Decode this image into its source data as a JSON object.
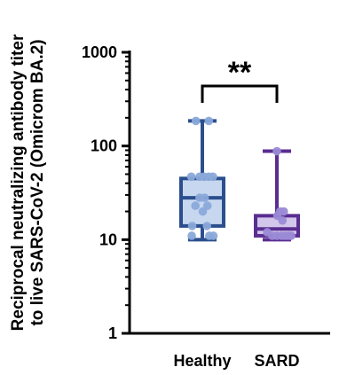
{
  "chart_data": {
    "type": "box",
    "ylabel_lines": [
      "Reciprocal neutralizing antibody titer",
      "to live SARS-CoV-2 (Omicrom BA.2)"
    ],
    "y_scale": "log",
    "ylim": [
      1,
      1000
    ],
    "yticks": [
      {
        "value": 1,
        "label": "1"
      },
      {
        "value": 10,
        "label": "10"
      },
      {
        "value": 100,
        "label": "100"
      },
      {
        "value": 1000,
        "label": "1000"
      }
    ],
    "categories": [
      "Healthy",
      "SARD"
    ],
    "groups": [
      {
        "label": "Healthy",
        "box_color": "#2b4f8e",
        "fill_color": "#c7d7ef",
        "point_color": "#8aa9d9",
        "min": 10,
        "q1": 14,
        "median": 28,
        "q3": 45,
        "max": 185,
        "points": [
          {
            "value": 185,
            "jitter": -0.28
          },
          {
            "value": 185,
            "jitter": 0.28
          },
          {
            "value": 47,
            "jitter": -0.48
          },
          {
            "value": 47,
            "jitter": -0.12
          },
          {
            "value": 47,
            "jitter": 0.08
          },
          {
            "value": 47,
            "jitter": 0.28
          },
          {
            "value": 47,
            "jitter": 0.46
          },
          {
            "value": 28,
            "jitter": -0.12
          },
          {
            "value": 28,
            "jitter": 0.1
          },
          {
            "value": 23,
            "jitter": -0.3
          },
          {
            "value": 23,
            "jitter": 0.22
          },
          {
            "value": 20,
            "jitter": 0.02
          },
          {
            "value": 14,
            "jitter": -0.44
          },
          {
            "value": 14,
            "jitter": 0.2
          },
          {
            "value": 11,
            "jitter": -0.46
          },
          {
            "value": 11,
            "jitter": 0.3
          },
          {
            "value": 11,
            "jitter": 0.48
          }
        ]
      },
      {
        "label": "SARD",
        "box_color": "#5a2d91",
        "fill_color": "#d2c6ea",
        "point_color": "#9b8ad6",
        "min": 10,
        "q1": 11,
        "median": 13,
        "q3": 18,
        "max": 88,
        "points": [
          {
            "value": 88,
            "jitter": 0.0
          },
          {
            "value": 20,
            "jitter": 0.14
          },
          {
            "value": 20,
            "jitter": 0.3
          },
          {
            "value": 18,
            "jitter": 0.02
          },
          {
            "value": 16,
            "jitter": 0.24
          },
          {
            "value": 12,
            "jitter": -0.42
          },
          {
            "value": 11,
            "jitter": -0.2
          },
          {
            "value": 11,
            "jitter": 0.0
          },
          {
            "value": 11,
            "jitter": 0.2
          },
          {
            "value": 11,
            "jitter": 0.36
          },
          {
            "value": 11,
            "jitter": 0.5
          },
          {
            "value": 11,
            "jitter": 0.62
          }
        ]
      }
    ],
    "significance": {
      "label": "**",
      "between": [
        "Healthy",
        "SARD"
      ]
    },
    "grid": false,
    "legend": "none"
  }
}
